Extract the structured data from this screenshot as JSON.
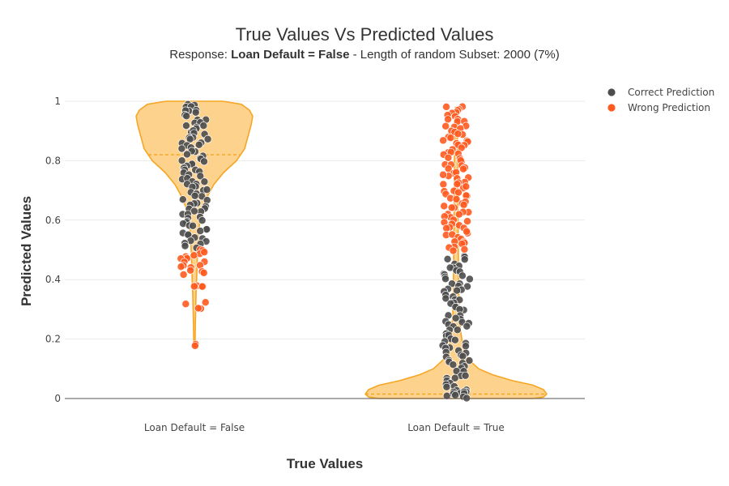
{
  "chart_data": {
    "type": "violin",
    "title": "True Values Vs Predicted Values",
    "subtitle": {
      "prefix": "Response: ",
      "bold": "Loan Default = False",
      "suffix": " - Length of random Subset: 2000 (7%)"
    },
    "xlabel": "True Values",
    "ylabel": "Predicted Values",
    "categories": [
      "Loan Default = False",
      "Loan Default = True"
    ],
    "ylim": [
      0,
      1
    ],
    "yticks": [
      0,
      0.2,
      0.4,
      0.6,
      0.8,
      1
    ],
    "ytick_labels": [
      "0",
      "0.2",
      "0.4",
      "0.6",
      "0.8",
      "1"
    ],
    "grid": true,
    "legend_position": "top-right",
    "violins": [
      {
        "category": "Loan Default = False",
        "median": 0.82,
        "range": [
          0.18,
          1.0
        ],
        "fill_color": "#fdd28d",
        "line_color": "#f5a623"
      },
      {
        "category": "Loan Default = True",
        "median": 0.015,
        "range": [
          0.0,
          0.98
        ],
        "fill_color": "#fdd28d",
        "line_color": "#f5a623"
      }
    ],
    "series": [
      {
        "name": "Correct Prediction",
        "color": "#4d4d4d",
        "points": [
          {
            "category": "Loan Default = False",
            "values": [
              0.99,
              0.98,
              0.97,
              0.965,
              0.95,
              0.94,
              0.93,
              0.92,
              0.91,
              0.9,
              0.89,
              0.88,
              0.87,
              0.86,
              0.85,
              0.84,
              0.83,
              0.82,
              0.81,
              0.8,
              0.79,
              0.78,
              0.77,
              0.76,
              0.75,
              0.74,
              0.73,
              0.72,
              0.71,
              0.7,
              0.69,
              0.68,
              0.67,
              0.66,
              0.65,
              0.64,
              0.63,
              0.62,
              0.61,
              0.6,
              0.59,
              0.58,
              0.57,
              0.56,
              0.55,
              0.54,
              0.53,
              0.52,
              0.51
            ]
          },
          {
            "category": "Loan Default = True",
            "values": [
              0.48,
              0.47,
              0.45,
              0.44,
              0.43,
              0.42,
              0.41,
              0.4,
              0.39,
              0.38,
              0.37,
              0.36,
              0.35,
              0.34,
              0.33,
              0.32,
              0.31,
              0.3,
              0.28,
              0.27,
              0.26,
              0.25,
              0.24,
              0.23,
              0.22,
              0.21,
              0.2,
              0.19,
              0.18,
              0.17,
              0.16,
              0.15,
              0.14,
              0.13,
              0.12,
              0.11,
              0.1,
              0.09,
              0.08,
              0.07,
              0.06,
              0.05,
              0.04,
              0.03,
              0.025,
              0.02,
              0.015,
              0.01,
              0.005
            ]
          }
        ]
      },
      {
        "name": "Wrong Prediction",
        "color": "#ff5a1f",
        "points": [
          {
            "category": "Loan Default = False",
            "values": [
              0.5,
              0.49,
              0.48,
              0.47,
              0.46,
              0.45,
              0.44,
              0.43,
              0.42,
              0.38,
              0.375,
              0.32,
              0.305,
              0.18
            ]
          },
          {
            "category": "Loan Default = True",
            "values": [
              0.98,
              0.97,
              0.96,
              0.95,
              0.94,
              0.93,
              0.92,
              0.91,
              0.9,
              0.89,
              0.88,
              0.87,
              0.86,
              0.85,
              0.84,
              0.83,
              0.82,
              0.81,
              0.8,
              0.79,
              0.78,
              0.77,
              0.76,
              0.75,
              0.74,
              0.73,
              0.72,
              0.71,
              0.7,
              0.69,
              0.68,
              0.67,
              0.66,
              0.65,
              0.64,
              0.63,
              0.62,
              0.61,
              0.6,
              0.59,
              0.58,
              0.57,
              0.56,
              0.55,
              0.54,
              0.53,
              0.52,
              0.51,
              0.5
            ]
          }
        ]
      }
    ]
  }
}
